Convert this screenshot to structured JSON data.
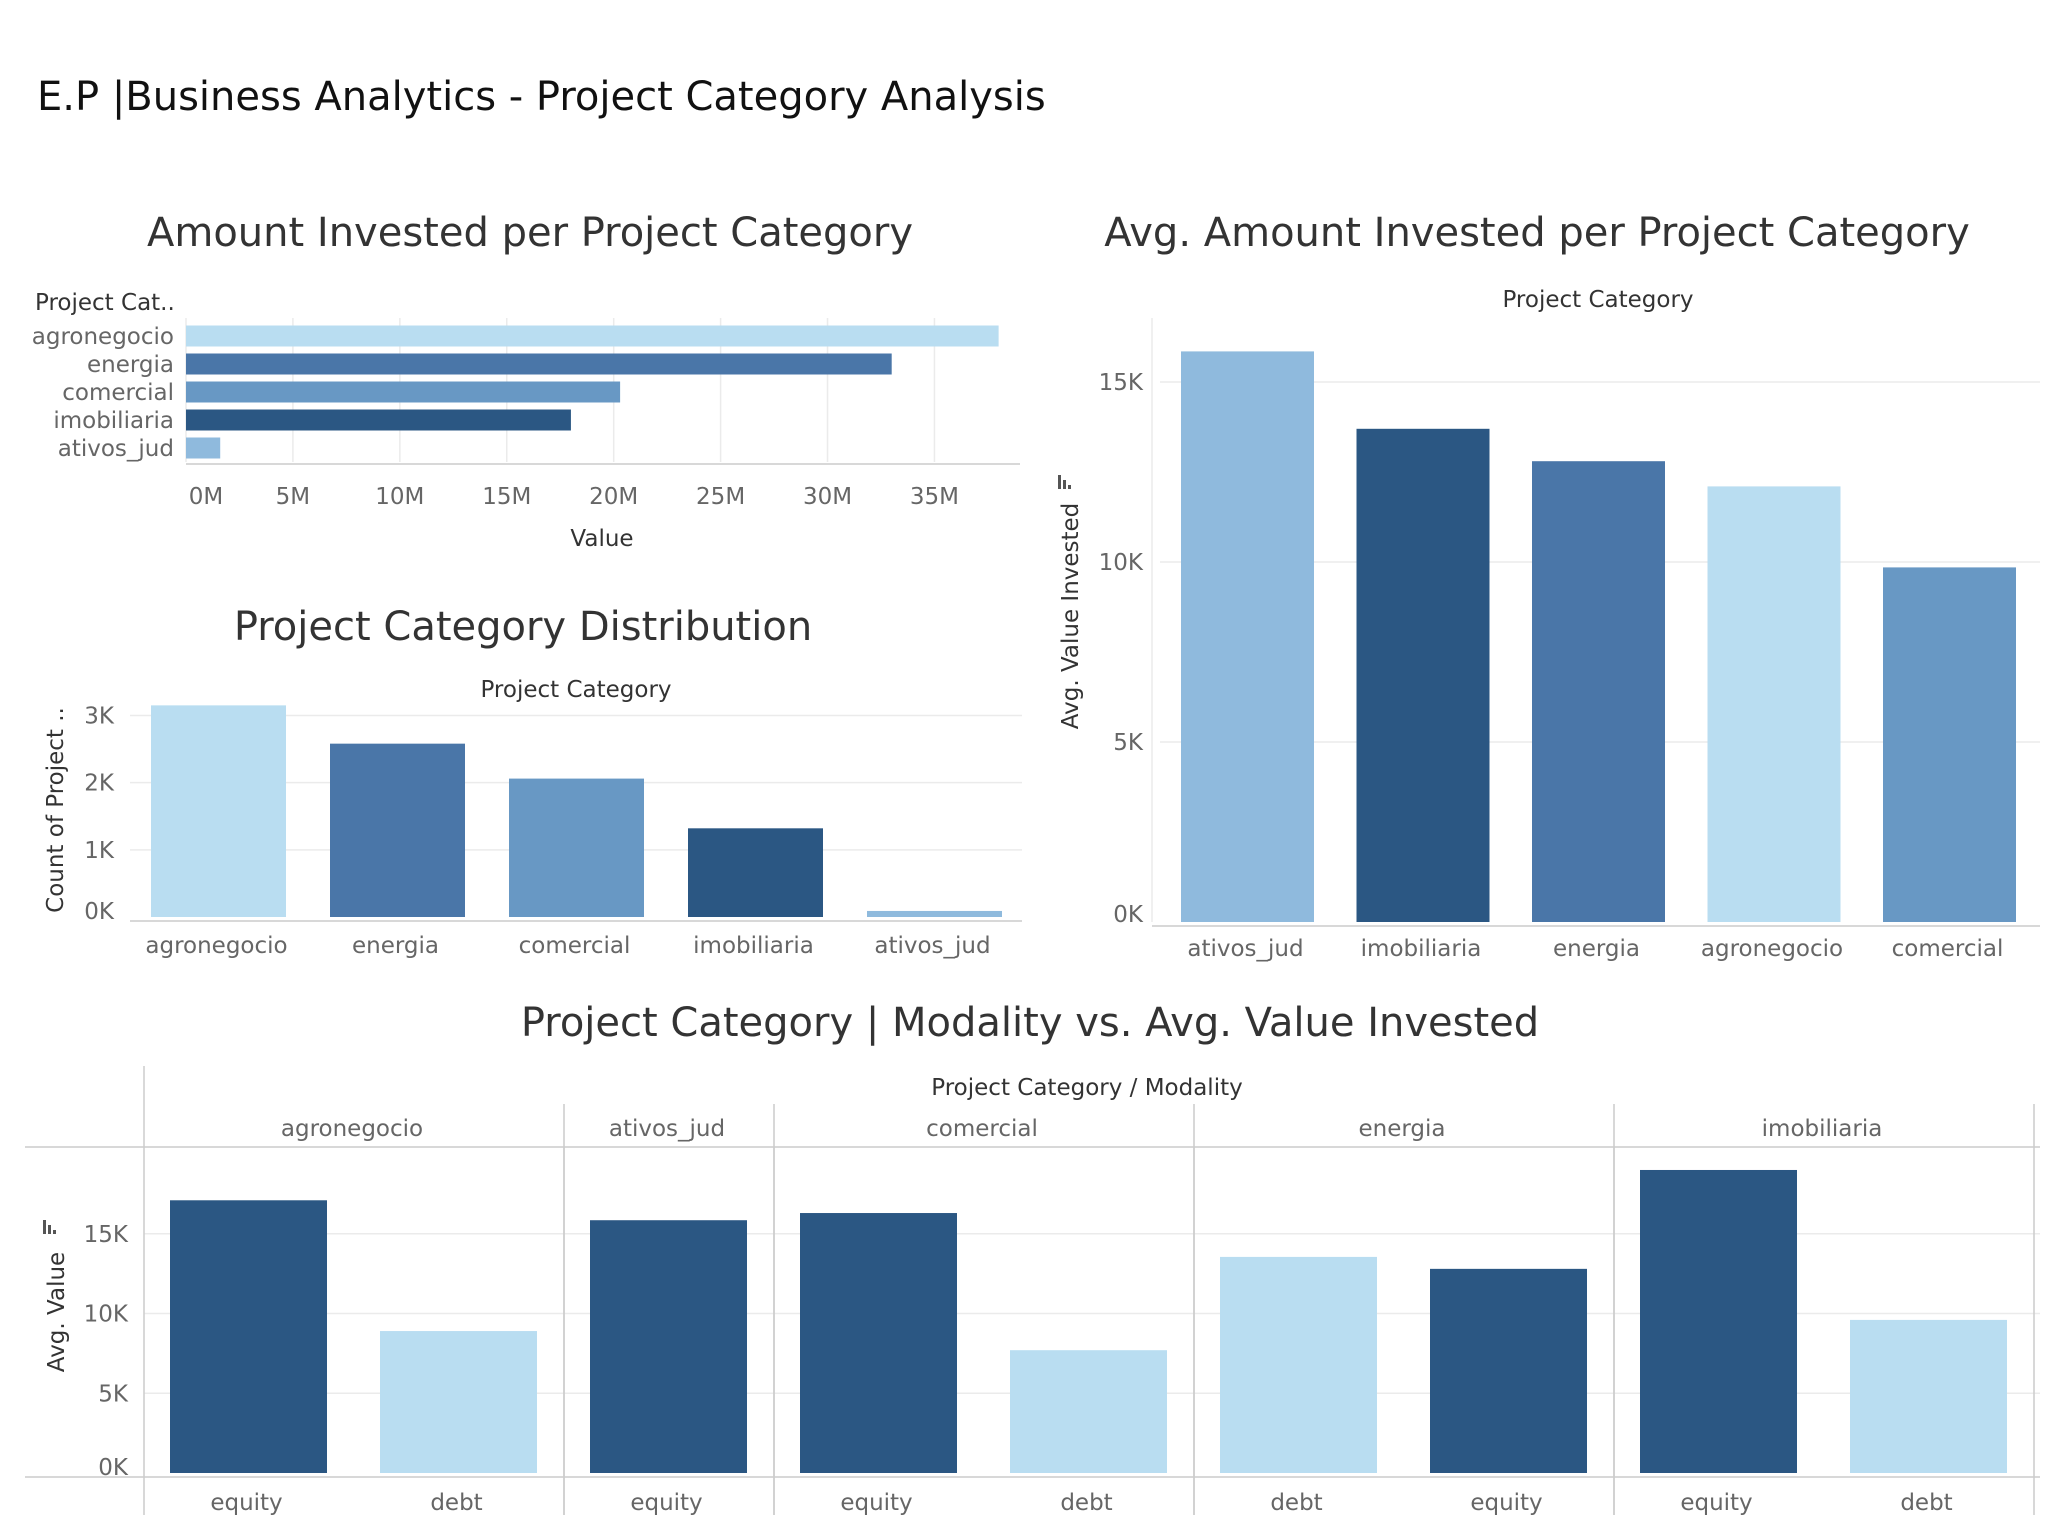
{
  "dashboard": {
    "title": "E.P |Business Analytics - Project Category Analysis"
  },
  "colors": {
    "light": "#b9ddf1",
    "steel": "#4a76a8",
    "mid": "#6898c4",
    "dark": "#2b5783",
    "sky": "#8fbadd",
    "grid": "#ebebeb",
    "axis": "#cccccc",
    "label": "#666666",
    "header": "#333333"
  },
  "chart_data": [
    {
      "id": "amount-invested",
      "type": "bar",
      "orientation": "horizontal",
      "title": "Amount Invested per Project Category",
      "row_header": "Project Cat..",
      "xlabel": "Value",
      "categories": [
        "agronegocio",
        "energia",
        "comercial",
        "imobiliaria",
        "ativos_jud"
      ],
      "values": [
        38000000,
        33000000,
        20300000,
        18000000,
        1600000
      ],
      "bar_colors": [
        "#b9ddf1",
        "#4a76a8",
        "#6898c4",
        "#2b5783",
        "#8fbadd"
      ],
      "xlim": [
        0,
        39000000
      ],
      "xticks": [
        0,
        5000000,
        10000000,
        15000000,
        20000000,
        25000000,
        30000000,
        35000000
      ],
      "xtick_labels": [
        "0M",
        "5M",
        "10M",
        "15M",
        "20M",
        "25M",
        "30M",
        "35M"
      ],
      "grid": true
    },
    {
      "id": "category-distribution",
      "type": "bar",
      "orientation": "vertical",
      "title": "Project Category Distribution",
      "column_header": "Project Category",
      "ylabel": "Count of Project ..",
      "categories": [
        "agronegocio",
        "energia",
        "comercial",
        "imobiliaria",
        "ativos_jud"
      ],
      "values": [
        3150,
        2580,
        2060,
        1320,
        90
      ],
      "bar_colors": [
        "#b9ddf1",
        "#4a76a8",
        "#6898c4",
        "#2b5783",
        "#8fbadd"
      ],
      "ylim": [
        0,
        3200
      ],
      "yticks": [
        0,
        1000,
        2000,
        3000
      ],
      "ytick_labels": [
        "0K",
        "1K",
        "2K",
        "3K"
      ],
      "grid": true
    },
    {
      "id": "avg-amount-invested",
      "type": "bar",
      "orientation": "vertical",
      "title": "Avg. Amount Invested per Project Category",
      "column_header": "Project Category",
      "ylabel": "Avg. Value Invested",
      "categories": [
        "ativos_jud",
        "imobiliaria",
        "energia",
        "agronegocio",
        "comercial"
      ],
      "values": [
        15850,
        13700,
        12800,
        12100,
        9850
      ],
      "bar_colors": [
        "#8fbadd",
        "#2b5783",
        "#4a76a8",
        "#b9ddf1",
        "#6898c4"
      ],
      "ylim": [
        0,
        16000
      ],
      "yticks": [
        0,
        5000,
        10000,
        15000
      ],
      "ytick_labels": [
        "0K",
        "5K",
        "10K",
        "15K"
      ],
      "grid": true
    },
    {
      "id": "modality-avg-value",
      "type": "bar",
      "orientation": "vertical",
      "title": "Project Category | Modality vs. Avg. Value Invested",
      "column_header": "Project Category  /  Modality",
      "ylabel": "Avg. Value",
      "ylim": [
        0,
        19500
      ],
      "yticks": [
        0,
        5000,
        10000,
        15000
      ],
      "ytick_labels": [
        "0K",
        "5K",
        "10K",
        "15K"
      ],
      "grid": true,
      "groups": [
        {
          "category": "agronegocio",
          "bars": [
            {
              "modality": "equity",
              "value": 17100
            },
            {
              "modality": "debt",
              "value": 8900
            }
          ]
        },
        {
          "category": "ativos_jud",
          "bars": [
            {
              "modality": "equity",
              "value": 15850
            }
          ]
        },
        {
          "category": "comercial",
          "bars": [
            {
              "modality": "equity",
              "value": 16300
            },
            {
              "modality": "debt",
              "value": 7700
            }
          ]
        },
        {
          "category": "energia",
          "bars": [
            {
              "modality": "debt",
              "value": 13550
            },
            {
              "modality": "equity",
              "value": 12800
            }
          ]
        },
        {
          "category": "imobiliaria",
          "bars": [
            {
              "modality": "equity",
              "value": 19000
            },
            {
              "modality": "debt",
              "value": 9600
            }
          ]
        }
      ],
      "modality_colors": {
        "equity": "#2b5783",
        "debt": "#b9ddf1"
      }
    }
  ]
}
